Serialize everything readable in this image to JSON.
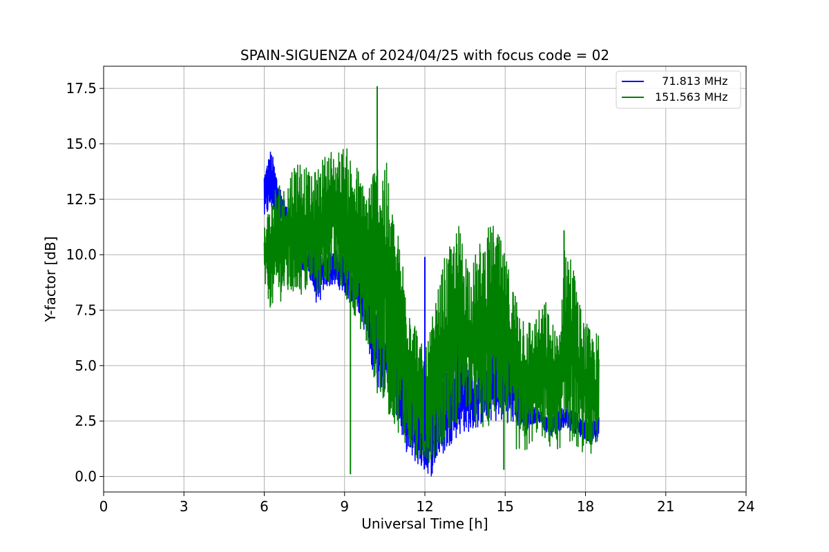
{
  "chart_data": {
    "type": "line",
    "title": "SPAIN-SIGUENZA of 2024/04/25 with focus code = 02",
    "xlabel": "Universal Time [h]",
    "ylabel": "Y-factor [dB]",
    "xlim": [
      0,
      24
    ],
    "ylim": [
      -0.7,
      18.5
    ],
    "xticks": [
      0,
      3,
      6,
      9,
      12,
      15,
      18,
      21,
      24
    ],
    "xtick_labels": [
      "0",
      "3",
      "6",
      "9",
      "12",
      "15",
      "18",
      "21",
      "24"
    ],
    "yticks": [
      0,
      2.5,
      5,
      7.5,
      10,
      12.5,
      15,
      17.5
    ],
    "ytick_labels": [
      "0.0",
      "2.5",
      "5.0",
      "7.5",
      "10.0",
      "12.5",
      "15.0",
      "17.5"
    ],
    "grid": true,
    "legend_position": "top-right",
    "series": [
      {
        "name": "  71.813 MHz",
        "color": "#0000ff",
        "x": [
          6.0,
          6.25,
          6.5,
          6.75,
          7.0,
          7.25,
          7.5,
          7.75,
          8.0,
          8.25,
          8.5,
          8.75,
          9.0,
          9.25,
          9.5,
          9.75,
          10.0,
          10.25,
          10.5,
          10.75,
          11.0,
          11.25,
          11.5,
          11.75,
          12.0,
          12.25,
          12.5,
          12.75,
          13.0,
          13.25,
          13.5,
          13.75,
          14.0,
          14.25,
          14.5,
          14.75,
          15.0,
          15.25,
          15.5,
          15.75,
          16.0,
          16.25,
          16.5,
          16.75,
          17.0,
          17.25,
          17.5,
          17.75,
          18.0,
          18.25,
          18.5
        ],
        "low": [
          11.5,
          12.0,
          11.5,
          11.0,
          10.0,
          9.5,
          9.2,
          8.8,
          7.5,
          8.5,
          8.6,
          8.5,
          8.2,
          7.8,
          7.5,
          6.5,
          5.0,
          4.0,
          3.8,
          3.5,
          2.5,
          1.2,
          0.8,
          0.5,
          0.2,
          0.0,
          0.8,
          1.0,
          1.5,
          1.8,
          2.0,
          2.0,
          2.2,
          2.5,
          2.5,
          2.4,
          2.5,
          2.4,
          2.2,
          2.0,
          2.2,
          2.5,
          2.0,
          1.8,
          2.0,
          2.3,
          2.0,
          1.8,
          1.6,
          1.6,
          1.5
        ],
        "high": [
          13.8,
          14.8,
          13.5,
          12.5,
          11.5,
          11.0,
          10.5,
          10.3,
          10.0,
          10.3,
          10.2,
          10.2,
          10.1,
          9.8,
          9.5,
          9.0,
          8.0,
          7.5,
          6.5,
          6.5,
          6.0,
          4.5,
          3.5,
          3.0,
          3.0,
          3.5,
          4.5,
          5.0,
          5.8,
          6.3,
          5.5,
          5.0,
          5.2,
          5.5,
          6.0,
          6.3,
          6.3,
          5.5,
          4.5,
          3.5,
          3.2,
          3.0,
          2.8,
          2.8,
          3.0,
          3.2,
          3.0,
          2.8,
          2.5,
          2.5,
          2.8
        ]
      },
      {
        "name": "151.563 MHz",
        "color": "#008000",
        "x": [
          6.0,
          6.25,
          6.5,
          6.75,
          7.0,
          7.25,
          7.5,
          7.75,
          8.0,
          8.25,
          8.5,
          8.75,
          9.0,
          9.25,
          9.5,
          9.75,
          10.0,
          10.25,
          10.5,
          10.75,
          11.0,
          11.25,
          11.5,
          11.75,
          12.0,
          12.25,
          12.5,
          12.75,
          13.0,
          13.25,
          13.5,
          13.75,
          14.0,
          14.25,
          14.5,
          14.75,
          15.0,
          15.25,
          15.5,
          15.75,
          16.0,
          16.25,
          16.5,
          16.75,
          17.0,
          17.25,
          17.5,
          17.75,
          18.0,
          18.25,
          18.5
        ],
        "low": [
          8.5,
          7.5,
          7.8,
          8.0,
          8.0,
          8.2,
          8.0,
          8.5,
          8.0,
          8.5,
          8.8,
          8.5,
          8.0,
          7.5,
          7.0,
          6.0,
          5.0,
          3.5,
          3.0,
          2.5,
          2.0,
          1.5,
          1.0,
          0.5,
          0.8,
          0.5,
          1.0,
          1.5,
          2.0,
          2.5,
          3.0,
          2.5,
          1.8,
          2.0,
          2.5,
          2.8,
          2.5,
          1.5,
          1.0,
          0.8,
          1.5,
          2.0,
          1.5,
          1.0,
          1.2,
          1.5,
          1.5,
          1.2,
          1.0,
          0.8,
          1.2
        ],
        "high": [
          11.5,
          12.5,
          13.5,
          13.0,
          14.0,
          14.5,
          14.2,
          13.5,
          14.0,
          14.5,
          14.8,
          14.7,
          15.0,
          14.5,
          14.0,
          13.0,
          14.0,
          14.5,
          14.8,
          12.5,
          11.0,
          9.5,
          8.0,
          6.5,
          5.5,
          7.0,
          8.5,
          10.0,
          10.5,
          11.5,
          10.5,
          9.5,
          10.5,
          11.0,
          11.5,
          11.0,
          10.0,
          9.0,
          8.0,
          7.5,
          7.0,
          7.5,
          8.0,
          7.0,
          6.5,
          11.0,
          10.0,
          8.0,
          7.0,
          6.5,
          6.5
        ]
      }
    ],
    "spikes": [
      {
        "series": 1,
        "x": 9.22,
        "y": 0.1
      },
      {
        "series": 1,
        "x": 10.22,
        "y": 17.6
      },
      {
        "series": 1,
        "x": 14.95,
        "y": 0.3
      },
      {
        "series": 0,
        "x": 12.0,
        "y": 9.9
      },
      {
        "series": 1,
        "x": 17.2,
        "y": 11.1
      }
    ]
  }
}
